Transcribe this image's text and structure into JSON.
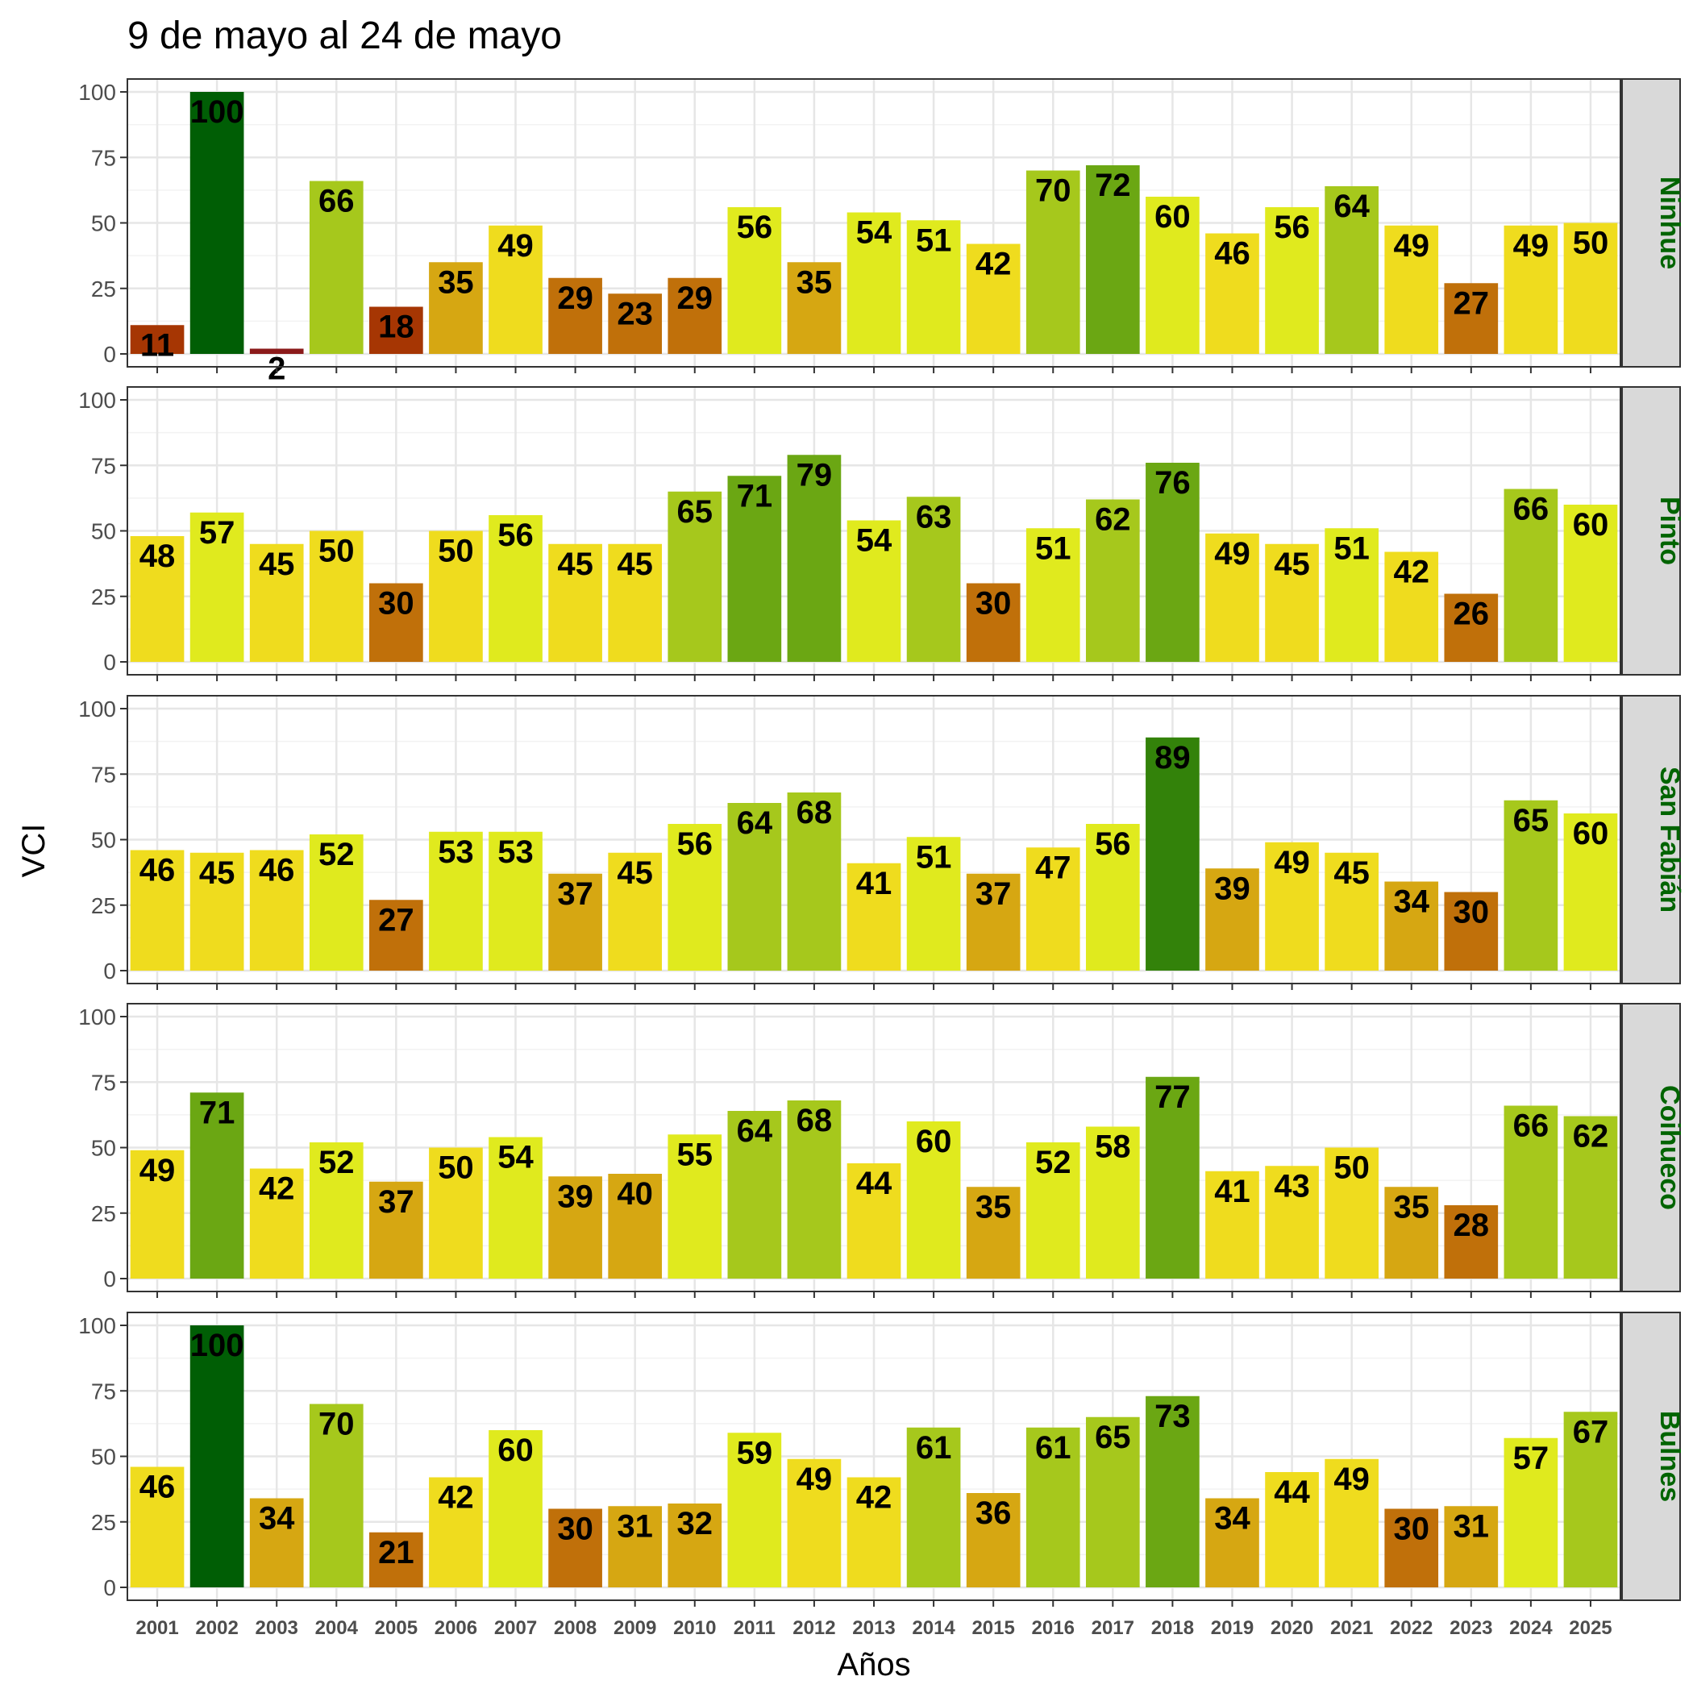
{
  "chart_data": {
    "type": "bar",
    "title": "9 de mayo al 24 de mayo",
    "xlabel": "Años",
    "ylabel": "VCI",
    "ylim": [
      0,
      100
    ],
    "yticks": [
      0,
      25,
      50,
      75,
      100
    ],
    "grid": true,
    "facet_label_color": "#006400",
    "categories": [
      "2001",
      "2002",
      "2003",
      "2004",
      "2005",
      "2006",
      "2007",
      "2008",
      "2009",
      "2010",
      "2011",
      "2012",
      "2013",
      "2014",
      "2015",
      "2016",
      "2017",
      "2018",
      "2019",
      "2020",
      "2021",
      "2022",
      "2023",
      "2024",
      "2025"
    ],
    "color_scale": {
      "description": "bar fill by VCI value",
      "stops": [
        {
          "max": 10,
          "color": "#8B1A1A"
        },
        {
          "max": 20,
          "color": "#A63603"
        },
        {
          "max": 30,
          "color": "#C0700A"
        },
        {
          "max": 40,
          "color": "#D6A712"
        },
        {
          "max": 50,
          "color": "#EFDC1E"
        },
        {
          "max": 60,
          "color": "#E0EA1E"
        },
        {
          "max": 70,
          "color": "#A6C81C"
        },
        {
          "max": 80,
          "color": "#6BA713"
        },
        {
          "max": 90,
          "color": "#33820A"
        },
        {
          "max": 100,
          "color": "#005E05"
        }
      ]
    },
    "series": [
      {
        "name": "Ninhue",
        "values": [
          11,
          100,
          2,
          66,
          18,
          35,
          49,
          29,
          23,
          29,
          56,
          35,
          54,
          51,
          42,
          70,
          72,
          60,
          46,
          56,
          64,
          49,
          27,
          49,
          50
        ]
      },
      {
        "name": "Pinto",
        "values": [
          48,
          57,
          45,
          50,
          30,
          50,
          56,
          45,
          45,
          65,
          71,
          79,
          54,
          63,
          30,
          51,
          62,
          76,
          49,
          45,
          51,
          42,
          26,
          66,
          60
        ]
      },
      {
        "name": "San Fabián",
        "values": [
          46,
          45,
          46,
          52,
          27,
          53,
          53,
          37,
          45,
          56,
          64,
          68,
          41,
          51,
          37,
          47,
          56,
          89,
          39,
          49,
          45,
          34,
          30,
          65,
          60
        ]
      },
      {
        "name": "Coihueco",
        "values": [
          49,
          71,
          42,
          52,
          37,
          50,
          54,
          39,
          40,
          55,
          64,
          68,
          44,
          60,
          35,
          52,
          58,
          77,
          41,
          43,
          50,
          35,
          28,
          66,
          62
        ]
      },
      {
        "name": "Bulnes",
        "values": [
          46,
          100,
          34,
          70,
          21,
          42,
          60,
          30,
          31,
          32,
          59,
          49,
          42,
          61,
          36,
          61,
          65,
          73,
          34,
          44,
          49,
          30,
          31,
          57,
          67
        ]
      }
    ]
  }
}
